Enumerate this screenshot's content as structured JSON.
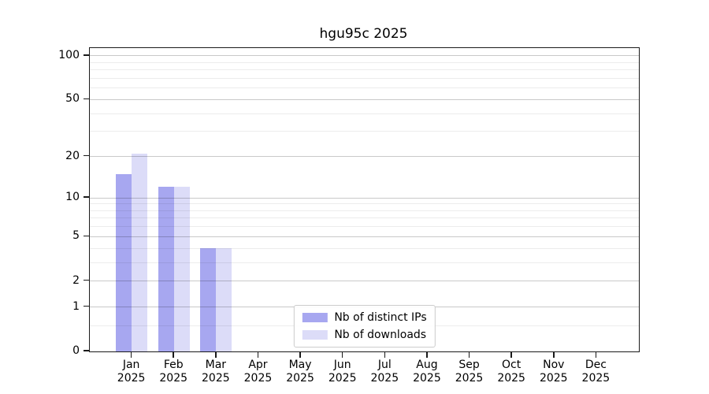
{
  "title": "hgu95c 2025",
  "chart_data": {
    "type": "bar",
    "title": "hgu95c 2025",
    "categories": [
      "Jan",
      "Feb",
      "Mar",
      "Apr",
      "May",
      "Jun",
      "Jul",
      "Aug",
      "Sep",
      "Oct",
      "Nov",
      "Dec"
    ],
    "category_year": "2025",
    "series": [
      {
        "name": "Nb of distinct IPs",
        "color": "#a7a7f0",
        "values": [
          15,
          12,
          4,
          0,
          0,
          0,
          0,
          0,
          0,
          0,
          0,
          0
        ]
      },
      {
        "name": "Nb of downloads",
        "color": "#dcdcf8",
        "values": [
          21,
          12,
          4,
          0,
          0,
          0,
          0,
          0,
          0,
          0,
          0,
          0
        ]
      }
    ],
    "yscale": "log1p",
    "ylim": [
      0,
      113
    ],
    "yticks": [
      0,
      1,
      2,
      5,
      10,
      20,
      50,
      100
    ],
    "minor_yticks": [
      0.5,
      3,
      4,
      6,
      7,
      8,
      9,
      30,
      40,
      60,
      70,
      80,
      90
    ],
    "grid": true,
    "legend_position": "lower center"
  },
  "colors": {
    "bar_distinct_ips": "#a7a7f0",
    "bar_downloads": "#dcdcf8",
    "major_grid": "#c9c9c9",
    "minor_grid": "#ececec",
    "spine": "#1a1a1a",
    "legend_border": "#cccccc",
    "background": "#ffffff"
  }
}
